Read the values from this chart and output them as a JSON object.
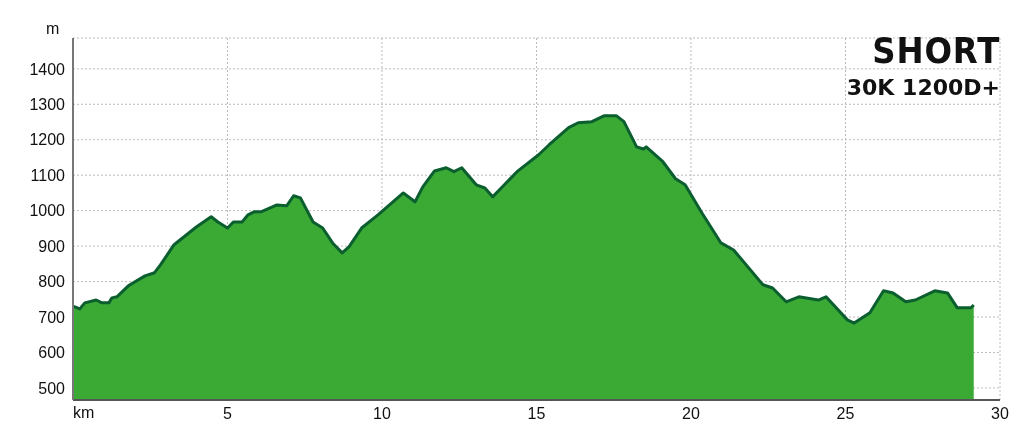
{
  "chart_data": {
    "type": "area",
    "title": "SHORT",
    "subtitle": "30K 1200D+",
    "xlabel": "km",
    "ylabel": "m",
    "x": [
      0,
      0.22,
      0.38,
      0.75,
      0.94,
      1.16,
      1.26,
      1.42,
      1.79,
      2.33,
      2.64,
      2.83,
      3.27,
      3.99,
      4.47,
      4.69,
      5.0,
      5.19,
      5.47,
      5.66,
      5.88,
      6.1,
      6.6,
      6.92,
      7.14,
      7.36,
      7.77,
      8.08,
      8.4,
      8.71,
      8.93,
      9.34,
      9.87,
      10.69,
      11.07,
      11.32,
      11.7,
      12.08,
      12.33,
      12.58,
      13.05,
      13.33,
      13.58,
      13.96,
      14.37,
      15.06,
      15.41,
      16.04,
      16.35,
      16.79,
      17.2,
      17.58,
      17.83,
      18.24,
      18.46,
      18.55,
      19.09,
      19.5,
      19.81,
      20.35,
      20.97,
      21.38,
      22.33,
      22.64,
      23.08,
      23.49,
      24.12,
      24.37,
      25.06,
      25.28,
      25.79,
      26.23,
      26.54,
      26.95,
      27.26,
      27.89,
      28.3,
      28.62,
      29.06,
      29.15
    ],
    "series": [
      {
        "color": "#3aaa35",
        "values": [
          731,
          723,
          740,
          748,
          740,
          740,
          754,
          757,
          788,
          816,
          825,
          847,
          904,
          954,
          983,
          968,
          951,
          968,
          968,
          988,
          997,
          997,
          1016,
          1014,
          1042,
          1036,
          968,
          951,
          909,
          881,
          898,
          951,
          988,
          1050,
          1025,
          1067,
          1112,
          1121,
          1110,
          1121,
          1073,
          1064,
          1039,
          1073,
          1110,
          1157,
          1186,
          1234,
          1248,
          1251,
          1268,
          1268,
          1251,
          1180,
          1174,
          1180,
          1138,
          1090,
          1073,
          994,
          909,
          889,
          791,
          782,
          743,
          757,
          748,
          757,
          692,
          683,
          712,
          774,
          768,
          743,
          748,
          774,
          768,
          726,
          726,
          734
        ]
      }
    ],
    "xlim": [
      0,
      30
    ],
    "xticks": [
      5,
      10,
      15,
      20,
      25,
      30
    ],
    "ylim": [
      466,
      1487
    ],
    "yticks": [
      500,
      600,
      700,
      800,
      900,
      1000,
      1100,
      1200,
      1300,
      1400
    ],
    "grid": true
  }
}
